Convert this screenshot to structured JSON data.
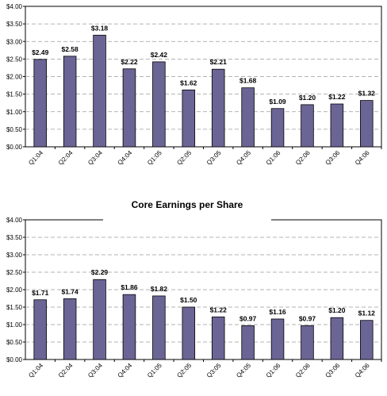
{
  "chart_data": [
    {
      "type": "bar",
      "title": "",
      "categories": [
        "Q1:04",
        "Q2:04",
        "Q3:04",
        "Q4:04",
        "Q1:05",
        "Q2:05",
        "Q3:05",
        "Q4:05",
        "Q1:06",
        "Q2:06",
        "Q3:06",
        "Q4:06"
      ],
      "values": [
        2.49,
        2.58,
        3.18,
        2.22,
        2.42,
        1.62,
        2.21,
        1.68,
        1.09,
        1.2,
        1.22,
        1.32
      ],
      "data_labels": [
        "$2.49",
        "$2.58",
        "$3.18",
        "$2.22",
        "$2.42",
        "$1.62",
        "$2.21",
        "$1.68",
        "$1.09",
        "$1.20",
        "$1.22",
        "$1.32"
      ],
      "y_ticks": [
        "$0.00",
        "$0.50",
        "$1.00",
        "$1.50",
        "$2.00",
        "$2.50",
        "$3.00",
        "$3.50",
        "$4.00"
      ],
      "ylim": [
        0,
        4
      ],
      "grid": true,
      "bar_color": "#6b6596"
    },
    {
      "type": "bar",
      "title": "Core Earnings per Share",
      "categories": [
        "Q1:04",
        "Q2:04",
        "Q3:04",
        "Q4:04",
        "Q1:05",
        "Q2:05",
        "Q3:05",
        "Q4:05",
        "Q1:06",
        "Q2:06",
        "Q3:06",
        "Q4:06"
      ],
      "values": [
        1.71,
        1.74,
        2.29,
        1.86,
        1.82,
        1.5,
        1.22,
        0.97,
        1.16,
        0.97,
        1.2,
        1.12
      ],
      "data_labels": [
        "$1.71",
        "$1.74",
        "$2.29",
        "$1.86",
        "$1.82",
        "$1.50",
        "$1.22",
        "$0.97",
        "$1.16",
        "$0.97",
        "$1.20",
        "$1.12"
      ],
      "y_ticks": [
        "$0.00",
        "$0.50",
        "$1.00",
        "$1.50",
        "$2.00",
        "$2.50",
        "$3.00",
        "$3.50",
        "$4.00"
      ],
      "ylim": [
        0,
        4
      ],
      "grid": true,
      "bar_color": "#6b6596"
    }
  ]
}
